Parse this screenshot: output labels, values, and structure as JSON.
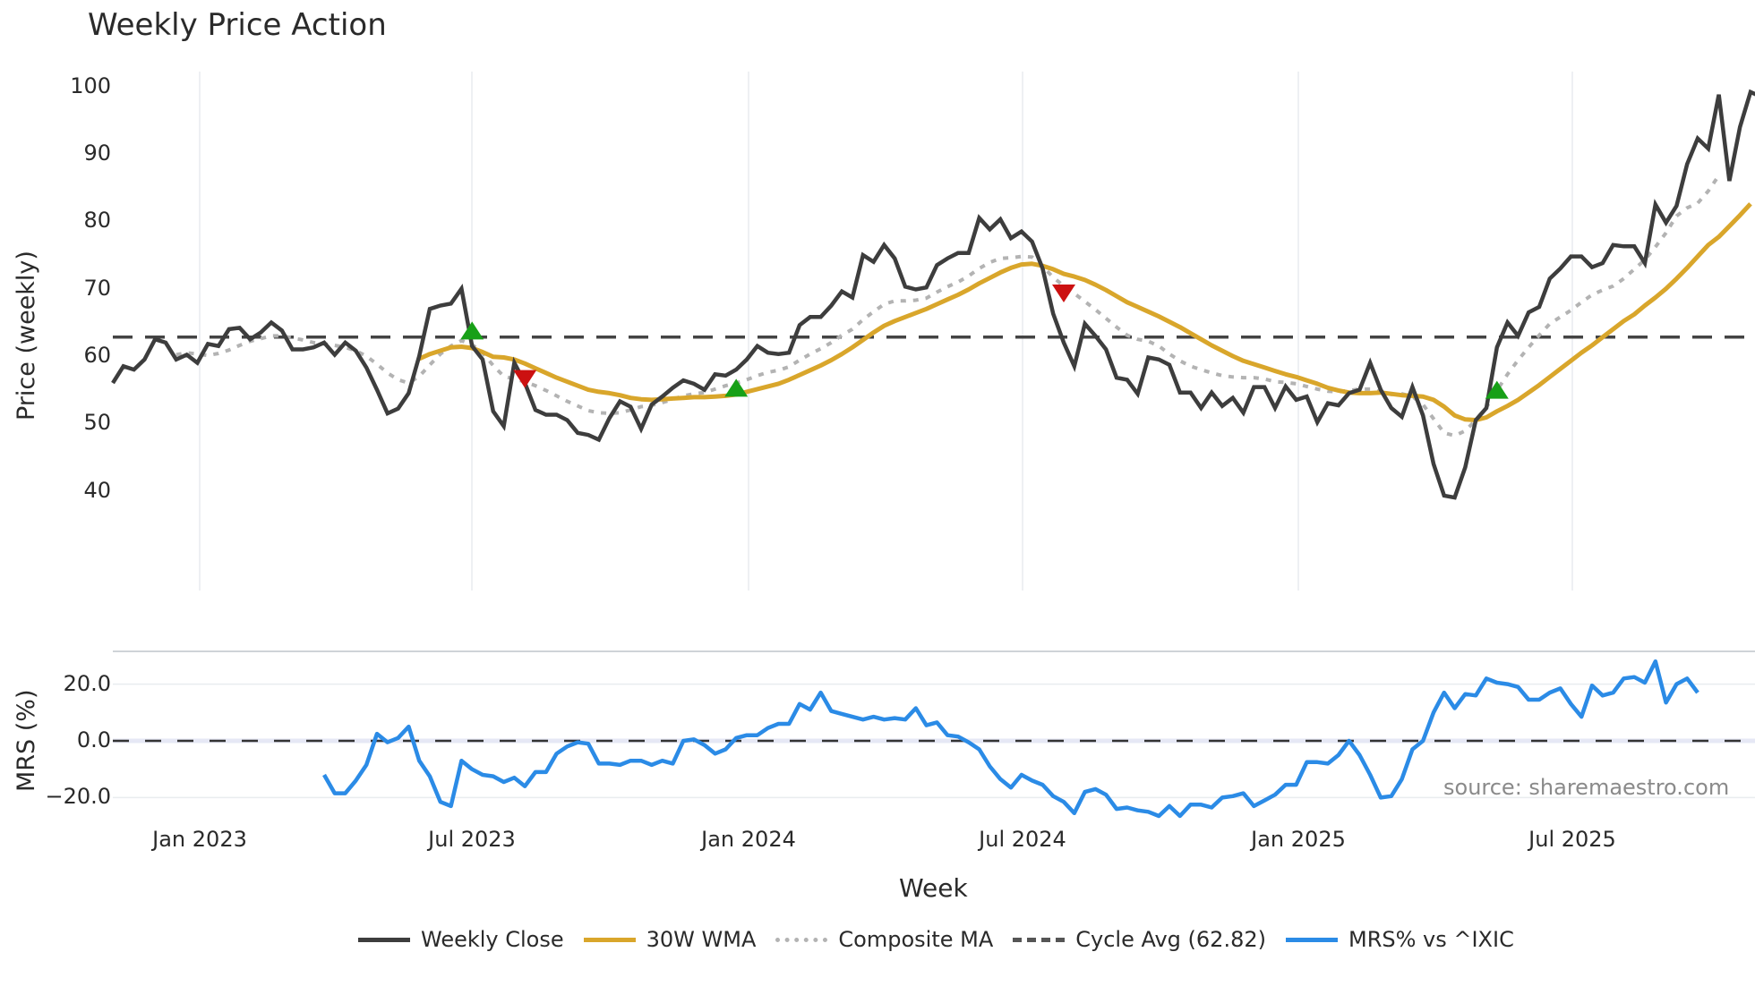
{
  "title": "Weekly Price Action",
  "price_axis": {
    "label": "Price (weekly)",
    "ticks": [
      "100",
      "90",
      "80",
      "70",
      "60",
      "50",
      "40"
    ]
  },
  "mrs_axis": {
    "label": "MRS (%)",
    "ticks": [
      "20.0",
      "0.0",
      "−20.0"
    ]
  },
  "x_axis": {
    "label": "Week",
    "ticks": [
      "Jan 2023",
      "Jul 2023",
      "Jan 2024",
      "Jul 2024",
      "Jan 2025",
      "Jul 2025"
    ]
  },
  "source": "source: sharemaestro.com",
  "legend": [
    {
      "label": "Weekly Close",
      "color": "#3d3d3d",
      "style": "solid"
    },
    {
      "label": "30W WMA",
      "color": "#d9a62b",
      "style": "solid"
    },
    {
      "label": "Composite MA",
      "color": "#b3b3b3",
      "style": "dotted"
    },
    {
      "label": "Cycle Avg (62.82)",
      "color": "#555555",
      "style": "dashed"
    },
    {
      "label": "MRS% vs ^IXIC",
      "color": "#2b8be6",
      "style": "solid"
    }
  ],
  "colors": {
    "close": "#3d3d3d",
    "wma": "#d9a62b",
    "composite": "#b3b3b3",
    "cycle": "#444444",
    "mrs": "#2b8be6",
    "buy": "#17a017",
    "sell": "#cc1111",
    "grid": "#e9ecef"
  },
  "chart_data": [
    {
      "type": "line",
      "title": "Weekly Price Action",
      "xlabel": "Week",
      "ylabel": "Price (weekly)",
      "ylim": [
        35,
        102
      ],
      "x_start_week_offset": -8,
      "x_tick_labels": [
        "Jan 2023",
        "Jul 2023",
        "Jan 2024",
        "Jul 2024",
        "Jan 2025",
        "Jul 2025"
      ],
      "cycle_avg": 62.82,
      "series": [
        {
          "name": "Weekly Close",
          "values": [
            56,
            58.5,
            58,
            59.5,
            62.5,
            62,
            59.5,
            60.2,
            59,
            61.8,
            61.5,
            64,
            64.2,
            62.5,
            63.5,
            65,
            63.8,
            61,
            61,
            61.3,
            62,
            60.2,
            62,
            60.8,
            58.3,
            55,
            51.5,
            52.2,
            54.5,
            60,
            67,
            67.5,
            67.8,
            70,
            61.5,
            59.5,
            51.8,
            49.6,
            59,
            56,
            52,
            51.3,
            51.3,
            50.5,
            48.6,
            48.3,
            47.6,
            50.8,
            53.3,
            52.5,
            49.2,
            52.8,
            54,
            55.3,
            56.4,
            55.9,
            55,
            57.3,
            57.1,
            58,
            59.5,
            61.5,
            60.5,
            60.3,
            60.5,
            64.6,
            65.8,
            65.8,
            67.5,
            69.6,
            68.7,
            75,
            74,
            76.5,
            74.5,
            70.3,
            69.9,
            70.2,
            73.5,
            74.5,
            75.3,
            75.3,
            80.5,
            78.8,
            80.3,
            77.5,
            78.5,
            77,
            73,
            66.3,
            62,
            58.5,
            64.8,
            63,
            61,
            56.8,
            56.5,
            54.4,
            59.8,
            59.5,
            58.7,
            54.6,
            54.6,
            52.3,
            54.6,
            52.6,
            53.8,
            51.6,
            55.4,
            55.4,
            52.3,
            55.5,
            53.5,
            54,
            50.2,
            53,
            52.7,
            54.5,
            55,
            59,
            55,
            52.3,
            51,
            55.4,
            51.2,
            44,
            39.3,
            39,
            43.5,
            50.5,
            52.3,
            61.3,
            65,
            63,
            66.5,
            67.3,
            71.5,
            73,
            74.8,
            74.8,
            73.2,
            73.8,
            76.5,
            76.3,
            76.3,
            73.8,
            82.5,
            79.8,
            82.3,
            88.5,
            92.3,
            90.8,
            98.8,
            86,
            94,
            99.2,
            98.5
          ]
        },
        {
          "name": "30W WMA",
          "values": [
            null,
            null,
            null,
            null,
            null,
            null,
            null,
            null,
            null,
            null,
            null,
            null,
            null,
            null,
            null,
            null,
            null,
            null,
            null,
            null,
            null,
            null,
            null,
            null,
            null,
            null,
            null,
            null,
            null,
            59.6,
            60.3,
            60.8,
            61.3,
            61.4,
            61.2,
            60.6,
            59.9,
            59.8,
            59.5,
            58.9,
            58.2,
            57.5,
            56.8,
            56.2,
            55.6,
            55,
            54.7,
            54.5,
            54.2,
            53.8,
            53.6,
            53.5,
            53.6,
            53.7,
            53.8,
            53.9,
            53.9,
            54,
            54.1,
            54.3,
            54.7,
            55.1,
            55.5,
            55.9,
            56.5,
            57.2,
            57.9,
            58.6,
            59.4,
            60.3,
            61.3,
            62.4,
            63.5,
            64.5,
            65.2,
            65.8,
            66.4,
            67,
            67.7,
            68.4,
            69.1,
            69.9,
            70.8,
            71.6,
            72.4,
            73.1,
            73.6,
            73.7,
            73.4,
            72.9,
            72.2,
            71.8,
            71.3,
            70.6,
            69.8,
            68.9,
            68,
            67.3,
            66.6,
            65.9,
            65.1,
            64.3,
            63.4,
            62.5,
            61.6,
            60.8,
            60,
            59.3,
            58.8,
            58.3,
            57.8,
            57.3,
            56.9,
            56.4,
            55.9,
            55.3,
            54.9,
            54.6,
            54.5,
            54.5,
            54.6,
            54.4,
            54.2,
            54.1,
            54,
            53.5,
            52.5,
            51.2,
            50.6,
            50.5,
            50.9,
            51.8,
            52.6,
            53.5,
            54.6,
            55.7,
            56.9,
            58.1,
            59.3,
            60.5,
            61.6,
            62.8,
            64,
            65.2,
            66.2,
            67.5,
            68.7,
            70,
            71.5,
            73.1,
            74.8,
            76.5,
            77.7,
            79.3,
            80.9,
            82.6
          ]
        },
        {
          "name": "Composite MA",
          "values": [
            null,
            null,
            null,
            null,
            null,
            null,
            60.2,
            60.5,
            60.3,
            60.1,
            60.4,
            60.9,
            61.6,
            62.2,
            62.6,
            63,
            63,
            62.7,
            62.4,
            62,
            61.8,
            61.6,
            61.3,
            60.8,
            60,
            58.8,
            57.5,
            56.5,
            56,
            57,
            58.7,
            60.3,
            61.5,
            62.3,
            61.7,
            60.5,
            58.6,
            57,
            56.6,
            56.2,
            55.6,
            54.9,
            54.1,
            53.3,
            52.6,
            51.9,
            51.6,
            51.5,
            51.6,
            52,
            52.5,
            52.7,
            53.1,
            53.6,
            54.1,
            54.4,
            54.6,
            55.1,
            55.6,
            56,
            56.5,
            57.1,
            57.6,
            57.9,
            58.4,
            59.4,
            60.3,
            61.1,
            62,
            63.1,
            64,
            65.4,
            66.6,
            67.7,
            68.2,
            68.2,
            68.3,
            68.6,
            69.5,
            70.3,
            71,
            71.9,
            73,
            73.9,
            74.5,
            74.6,
            74.8,
            74.7,
            73.3,
            71.7,
            70.4,
            69.3,
            68.1,
            66.9,
            65.6,
            64.3,
            63.1,
            62.5,
            62.2,
            61.5,
            60.3,
            59.3,
            58.5,
            58,
            57.5,
            57.1,
            56.9,
            56.8,
            56.8,
            56.6,
            56.2,
            56.1,
            55.9,
            55.5,
            55.1,
            54.8,
            54.7,
            54.9,
            55.1,
            55.1,
            54.7,
            54.3,
            54.4,
            54,
            52.8,
            50.7,
            48.6,
            48.2,
            48.9,
            50.5,
            52.4,
            54.9,
            57.3,
            59.4,
            61.3,
            63.1,
            64.8,
            65.8,
            66.8,
            68,
            69.1,
            69.8,
            70.4,
            71.5,
            72.9,
            74.3,
            76.2,
            78.3,
            80.8,
            82,
            82.7,
            84.5,
            86.8
          ]
        }
      ],
      "markers": [
        {
          "type": "buy",
          "week": 34,
          "value": 63.8
        },
        {
          "type": "sell",
          "week": 39,
          "value": 56.6
        },
        {
          "type": "buy",
          "week": 59,
          "value": 55.3
        },
        {
          "type": "sell",
          "week": 90,
          "value": 69.3
        },
        {
          "type": "buy",
          "week": 131,
          "value": 55.0
        }
      ]
    },
    {
      "type": "line",
      "title": "",
      "xlabel": "Week",
      "ylabel": "MRS (%)",
      "ylim": [
        -27,
        30
      ],
      "series": [
        {
          "name": "MRS% vs ^IXIC",
          "values": [
            null,
            null,
            null,
            null,
            null,
            null,
            null,
            null,
            null,
            null,
            null,
            null,
            null,
            null,
            null,
            null,
            null,
            null,
            null,
            null,
            -12,
            -18.5,
            -18.5,
            -14,
            -8.5,
            2.5,
            -0.5,
            1,
            5,
            -7,
            -12.5,
            -21.5,
            -23,
            -7,
            -10,
            -12,
            -12.5,
            -14.5,
            -13,
            -16,
            -11,
            -11,
            -4.5,
            -2,
            -0.5,
            -1,
            -8,
            -8,
            -8.5,
            -7,
            -7,
            -8.5,
            -7,
            -8,
            0,
            0.5,
            -1.5,
            -4.5,
            -3,
            1,
            2,
            2,
            4.5,
            6,
            6,
            13,
            11,
            17,
            10.5,
            9.5,
            8.5,
            7.5,
            8.5,
            7.5,
            8,
            7.5,
            11.5,
            5.5,
            6.5,
            2,
            1.5,
            -0.5,
            -3,
            -9,
            -13.5,
            -16.5,
            -12,
            -14,
            -15.5,
            -19.5,
            -21.5,
            -25.5,
            -18,
            -17,
            -19,
            -24,
            -23.5,
            -24.5,
            -25,
            -26.5,
            -23,
            -26.5,
            -22.5,
            -22.5,
            -23.5,
            -20,
            -19.5,
            -18.5,
            -23,
            -21,
            -19,
            -15.5,
            -15.5,
            -7.5,
            -7.5,
            -8,
            -5,
            0,
            -5,
            -12,
            -20,
            -19.5,
            -13.5,
            -3,
            0,
            10,
            17,
            11.5,
            16.5,
            16,
            22,
            20.5,
            20,
            19,
            14.5,
            14.5,
            17,
            18.5,
            13,
            8.5,
            19.5,
            16,
            17,
            22,
            22.5,
            20.5,
            28,
            13.5,
            20,
            22,
            17
          ]
        }
      ]
    }
  ]
}
